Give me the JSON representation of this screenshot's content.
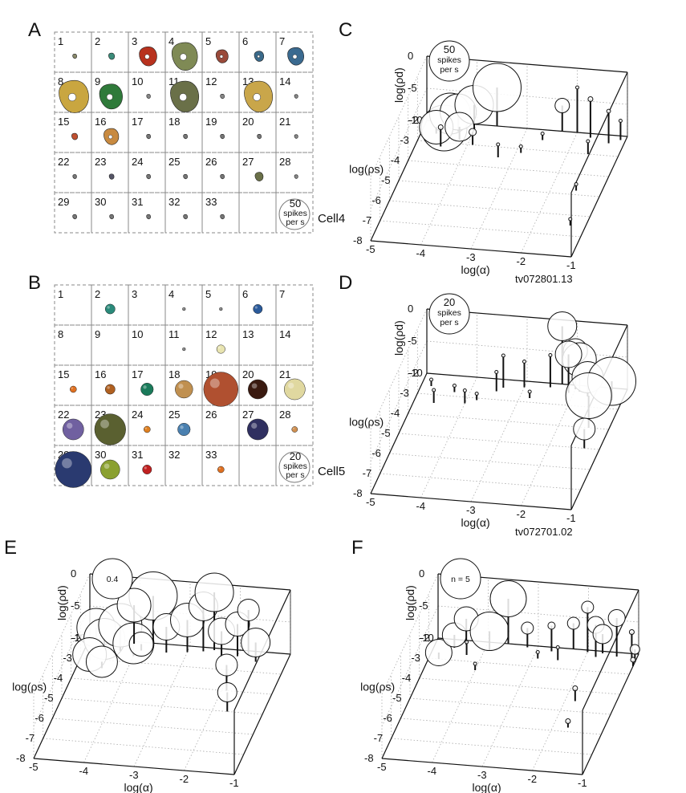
{
  "panels": {
    "A": {
      "label": "A",
      "cell_label": "Cell4",
      "legend": [
        "50",
        "spikes",
        "per s"
      ],
      "last_empty_index": 34
    },
    "B": {
      "label": "B",
      "cell_label": "Cell5",
      "legend": [
        "20",
        "spikes",
        "per s"
      ],
      "last_empty_index": 34
    },
    "C": {
      "label": "C",
      "legend": [
        "50",
        "spikes",
        "per s"
      ],
      "id_label": "tv072801.13"
    },
    "D": {
      "label": "D",
      "legend": [
        "20",
        "spikes",
        "per s"
      ],
      "id_label": "tv072701.02"
    },
    "E": {
      "label": "E",
      "legend": [
        "0.4"
      ]
    },
    "F": {
      "label": "F",
      "legend": [
        "n = 5"
      ]
    }
  },
  "grid_numbers": [
    "1",
    "2",
    "3",
    "4",
    "5",
    "6",
    "7",
    "8",
    "9",
    "10",
    "11",
    "12",
    "13",
    "14",
    "15",
    "16",
    "17",
    "18",
    "19",
    "20",
    "21",
    "22",
    "23",
    "24",
    "25",
    "26",
    "27",
    "28",
    "29",
    "30",
    "31",
    "32",
    "33"
  ],
  "axes": {
    "x_label": "log(α)",
    "y_label": "log(ρs)",
    "z_label": "log(ρd)",
    "x_ticks": [
      "-5",
      "-4",
      "-3",
      "-2",
      "-1"
    ],
    "y_ticks": [
      "-2",
      "-3",
      "-4",
      "-5",
      "-6",
      "-7",
      "-8"
    ],
    "z_ticks": [
      "0",
      "-5",
      "-10"
    ]
  },
  "grid_A": [
    {
      "n": 1,
      "size": 0.05,
      "color": "#8a8a6a"
    },
    {
      "n": 2,
      "size": 0.12,
      "color": "#3b8c7a"
    },
    {
      "n": 3,
      "size": 0.55,
      "color": "#b8321e"
    },
    {
      "n": 4,
      "size": 0.85,
      "color": "#7f8a55"
    },
    {
      "n": 5,
      "size": 0.35,
      "color": "#9a4a3a"
    },
    {
      "n": 6,
      "size": 0.25,
      "color": "#3a6a8a"
    },
    {
      "n": 7,
      "size": 0.5,
      "color": "#3a6a90"
    },
    {
      "n": 8,
      "size": 1.0,
      "color": "#c9a640"
    },
    {
      "n": 9,
      "size": 0.75,
      "color": "#2f7a3a"
    },
    {
      "n": 10,
      "size": 0.04,
      "color": "#888"
    },
    {
      "n": 11,
      "size": 0.95,
      "color": "#6a7048"
    },
    {
      "n": 12,
      "size": 0.05,
      "color": "#888"
    },
    {
      "n": 13,
      "size": 0.95,
      "color": "#c9a64a"
    },
    {
      "n": 14,
      "size": 0.03,
      "color": "#888"
    },
    {
      "n": 15,
      "size": 0.12,
      "color": "#c05030"
    },
    {
      "n": 16,
      "size": 0.45,
      "color": "#c88a40"
    },
    {
      "n": 17,
      "size": 0.05,
      "color": "#777"
    },
    {
      "n": 18,
      "size": 0.05,
      "color": "#777"
    },
    {
      "n": 19,
      "size": 0.05,
      "color": "#777"
    },
    {
      "n": 20,
      "size": 0.05,
      "color": "#777"
    },
    {
      "n": 21,
      "size": 0.03,
      "color": "#888"
    },
    {
      "n": 22,
      "size": 0.04,
      "color": "#777"
    },
    {
      "n": 23,
      "size": 0.08,
      "color": "#556"
    },
    {
      "n": 24,
      "size": 0.05,
      "color": "#777"
    },
    {
      "n": 25,
      "size": 0.05,
      "color": "#777"
    },
    {
      "n": 26,
      "size": 0.05,
      "color": "#777"
    },
    {
      "n": 27,
      "size": 0.2,
      "color": "#6a7048"
    },
    {
      "n": 28,
      "size": 0.03,
      "color": "#888"
    },
    {
      "n": 29,
      "size": 0.05,
      "color": "#777"
    },
    {
      "n": 30,
      "size": 0.05,
      "color": "#777"
    },
    {
      "n": 31,
      "size": 0.05,
      "color": "#777"
    },
    {
      "n": 32,
      "size": 0.05,
      "color": "#777"
    },
    {
      "n": 33,
      "size": 0.05,
      "color": "#777"
    }
  ],
  "grid_B": [
    {
      "n": 1,
      "size": 0.0,
      "color": "#888"
    },
    {
      "n": 2,
      "size": 0.22,
      "color": "#2a8a7a"
    },
    {
      "n": 3,
      "size": 0.0,
      "color": "#888"
    },
    {
      "n": 4,
      "size": 0.02,
      "color": "#888"
    },
    {
      "n": 5,
      "size": 0.02,
      "color": "#888"
    },
    {
      "n": 6,
      "size": 0.2,
      "color": "#2a5a9a"
    },
    {
      "n": 7,
      "size": 0.0,
      "color": "#888"
    },
    {
      "n": 8,
      "size": 0.0,
      "color": "#888"
    },
    {
      "n": 9,
      "size": 0.0,
      "color": "#888"
    },
    {
      "n": 10,
      "size": 0.0,
      "color": "#888"
    },
    {
      "n": 11,
      "size": 0.02,
      "color": "#888"
    },
    {
      "n": 12,
      "size": 0.18,
      "color": "#e8e4b0"
    },
    {
      "n": 13,
      "size": 0.0,
      "color": "#888"
    },
    {
      "n": 14,
      "size": 0.0,
      "color": "#888"
    },
    {
      "n": 15,
      "size": 0.12,
      "color": "#e07020"
    },
    {
      "n": 16,
      "size": 0.22,
      "color": "#b06020"
    },
    {
      "n": 17,
      "size": 0.3,
      "color": "#1a7a5a"
    },
    {
      "n": 18,
      "size": 0.45,
      "color": "#c09050"
    },
    {
      "n": 19,
      "size": 0.95,
      "color": "#b05030"
    },
    {
      "n": 20,
      "size": 0.5,
      "color": "#3a1a10"
    },
    {
      "n": 21,
      "size": 0.55,
      "color": "#e0d8a0"
    },
    {
      "n": 22,
      "size": 0.55,
      "color": "#7060a0"
    },
    {
      "n": 23,
      "size": 0.85,
      "color": "#5a6030"
    },
    {
      "n": 24,
      "size": 0.12,
      "color": "#e08020"
    },
    {
      "n": 25,
      "size": 0.3,
      "color": "#4a80b0"
    },
    {
      "n": 26,
      "size": 0.0,
      "color": "#888"
    },
    {
      "n": 27,
      "size": 0.55,
      "color": "#303060"
    },
    {
      "n": 28,
      "size": 0.1,
      "color": "#d09050"
    },
    {
      "n": 29,
      "size": 1.0,
      "color": "#2a3a70"
    },
    {
      "n": 30,
      "size": 0.5,
      "color": "#8aa030"
    },
    {
      "n": 31,
      "size": 0.2,
      "color": "#c02020"
    },
    {
      "n": 32,
      "size": 0.0,
      "color": "#888"
    },
    {
      "n": 33,
      "size": 0.12,
      "color": "#e07020"
    }
  ],
  "scatter": {
    "C": [
      {
        "a": -4.6,
        "s": -2.3,
        "d": -10,
        "r": 0.95
      },
      {
        "a": -4.5,
        "s": -2.2,
        "d": -8,
        "r": 0.85
      },
      {
        "a": -4.3,
        "s": -2.4,
        "d": -7,
        "r": 0.75
      },
      {
        "a": -4.7,
        "s": -2.6,
        "d": -9,
        "r": 0.7
      },
      {
        "a": -4.0,
        "s": -2.3,
        "d": -6,
        "r": 0.8
      },
      {
        "a": -4.2,
        "s": -2.8,
        "d": -8,
        "r": 0.6
      },
      {
        "a": -3.6,
        "s": -2.0,
        "d": -4,
        "r": 1.0
      },
      {
        "a": -4.5,
        "s": -3.2,
        "d": -7,
        "r": 0.1
      },
      {
        "a": -3.9,
        "s": -3.0,
        "d": -8,
        "r": 0.15
      },
      {
        "a": -2.3,
        "s": -2.0,
        "d": -6,
        "r": 0.3
      },
      {
        "a": -2.0,
        "s": -2.0,
        "d": -3,
        "r": 0.05
      },
      {
        "a": -1.7,
        "s": -2.2,
        "d": -4,
        "r": 0.1
      },
      {
        "a": -1.3,
        "s": -2.4,
        "d": -5,
        "r": 0.08
      },
      {
        "a": -1.6,
        "s": -3.0,
        "d": -8,
        "r": 0.05
      },
      {
        "a": -2.9,
        "s": -3.2,
        "d": -9,
        "r": 0.03
      },
      {
        "a": -3.3,
        "s": -3.5,
        "d": -8,
        "r": 0.03
      },
      {
        "a": -1.5,
        "s": -4.8,
        "d": -9,
        "r": 0.03
      },
      {
        "a": -1.3,
        "s": -6.5,
        "d": -9,
        "r": 0.03
      },
      {
        "a": -1.1,
        "s": -2.2,
        "d": -7,
        "r": 0.02
      },
      {
        "a": -2.6,
        "s": -2.5,
        "d": -9,
        "r": 0.02
      }
    ],
    "D": [
      {
        "a": -2.3,
        "s": -2.0,
        "d": -1,
        "r": 0.6
      },
      {
        "a": -2.0,
        "s": -2.2,
        "d": -4,
        "r": 0.5
      },
      {
        "a": -1.9,
        "s": -2.3,
        "d": -5,
        "r": 0.7
      },
      {
        "a": -2.1,
        "s": -2.4,
        "d": -4,
        "r": 0.55
      },
      {
        "a": -1.7,
        "s": -2.5,
        "d": -7,
        "r": 0.65
      },
      {
        "a": -1.2,
        "s": -2.6,
        "d": -7,
        "r": 1.0
      },
      {
        "a": -1.4,
        "s": -4.0,
        "d": -5,
        "r": 0.95
      },
      {
        "a": -1.3,
        "s": -5.0,
        "d": -7,
        "r": 0.45
      },
      {
        "a": -2.5,
        "s": -2.2,
        "d": -5,
        "r": 0.05
      },
      {
        "a": -3.0,
        "s": -2.3,
        "d": -6,
        "r": 0.06
      },
      {
        "a": -3.4,
        "s": -2.4,
        "d": -5,
        "r": 0.05
      },
      {
        "a": -4.6,
        "s": -3.4,
        "d": -8,
        "r": 0.05
      },
      {
        "a": -4.0,
        "s": -3.3,
        "d": -8,
        "r": 0.03
      },
      {
        "a": -3.8,
        "s": -3.1,
        "d": -9,
        "r": 0.03
      },
      {
        "a": -4.3,
        "s": -2.8,
        "d": -9,
        "r": 0.02
      },
      {
        "a": -4.8,
        "s": -2.6,
        "d": -9,
        "r": 0.02
      },
      {
        "a": -2.8,
        "s": -2.8,
        "d": -9,
        "r": 0.02
      },
      {
        "a": -3.5,
        "s": -2.6,
        "d": -7,
        "r": 0.02
      }
    ],
    "E": [
      {
        "a": -4.8,
        "s": -2.4,
        "d": -7,
        "r": 0.8
      },
      {
        "a": -4.6,
        "s": -2.6,
        "d": -8,
        "r": 0.85
      },
      {
        "a": -4.3,
        "s": -2.5,
        "d": -6,
        "r": 0.9
      },
      {
        "a": -4.0,
        "s": -2.7,
        "d": -8,
        "r": 0.85
      },
      {
        "a": -4.8,
        "s": -3.1,
        "d": -9,
        "r": 0.7
      },
      {
        "a": -4.5,
        "s": -3.4,
        "d": -9,
        "r": 0.65
      },
      {
        "a": -3.7,
        "s": -2.2,
        "d": -2,
        "r": 1.0
      },
      {
        "a": -3.4,
        "s": -2.4,
        "d": -6,
        "r": 0.55
      },
      {
        "a": -3.0,
        "s": -2.3,
        "d": -5,
        "r": 0.7
      },
      {
        "a": -2.7,
        "s": -2.2,
        "d": -3,
        "r": 0.6
      },
      {
        "a": -2.5,
        "s": -2.1,
        "d": -1,
        "r": 0.8
      },
      {
        "a": -2.3,
        "s": -2.4,
        "d": -6,
        "r": 0.55
      },
      {
        "a": -2.0,
        "s": -2.3,
        "d": -5,
        "r": 0.5
      },
      {
        "a": -1.8,
        "s": -2.2,
        "d": -3,
        "r": 0.45
      },
      {
        "a": -1.6,
        "s": -2.5,
        "d": -7,
        "r": 0.6
      },
      {
        "a": -1.9,
        "s": -4.0,
        "d": -6,
        "r": 0.45
      },
      {
        "a": -1.7,
        "s": -5.0,
        "d": -7,
        "r": 0.4
      },
      {
        "a": -3.9,
        "s": -2.4,
        "d": -9,
        "r": 0.5
      },
      {
        "a": -4.1,
        "s": -2.1,
        "d": -4,
        "r": 0.7
      }
    ],
    "F": [
      {
        "a": -4.8,
        "s": -3.0,
        "d": -9,
        "r": 0.55
      },
      {
        "a": -4.6,
        "s": -2.4,
        "d": -8,
        "r": 0.5
      },
      {
        "a": -4.4,
        "s": -2.2,
        "d": -6,
        "r": 0.5
      },
      {
        "a": -3.9,
        "s": -2.4,
        "d": -7,
        "r": 0.8
      },
      {
        "a": -3.6,
        "s": -2.0,
        "d": -3,
        "r": 0.75
      },
      {
        "a": -3.2,
        "s": -2.1,
        "d": -7,
        "r": 0.25
      },
      {
        "a": -2.7,
        "s": -2.2,
        "d": -6,
        "r": 0.15
      },
      {
        "a": -2.3,
        "s": -2.0,
        "d": -6,
        "r": 0.25
      },
      {
        "a": -2.0,
        "s": -2.1,
        "d": -3,
        "r": 0.25
      },
      {
        "a": -1.8,
        "s": -2.3,
        "d": -5,
        "r": 0.35
      },
      {
        "a": -1.7,
        "s": -2.1,
        "d": -7,
        "r": 0.4
      },
      {
        "a": -1.4,
        "s": -2.2,
        "d": -4,
        "r": 0.35
      },
      {
        "a": -1.1,
        "s": -2.2,
        "d": -6,
        "r": 0.1
      },
      {
        "a": -1.0,
        "s": -2.4,
        "d": -8,
        "r": 0.2
      },
      {
        "a": -1.0,
        "s": -2.6,
        "d": -9,
        "r": 0.1
      },
      {
        "a": -1.8,
        "s": -4.5,
        "d": -8,
        "r": 0.1
      },
      {
        "a": -1.7,
        "s": -5.8,
        "d": -9,
        "r": 0.1
      },
      {
        "a": -4.3,
        "s": -2.7,
        "d": -8,
        "r": 0.05
      },
      {
        "a": -4.0,
        "s": -3.4,
        "d": -9,
        "r": 0.05
      },
      {
        "a": -2.5,
        "s": -2.6,
        "d": -8,
        "r": 0.03
      },
      {
        "a": -2.9,
        "s": -2.6,
        "d": -9,
        "r": 0.03
      }
    ]
  }
}
